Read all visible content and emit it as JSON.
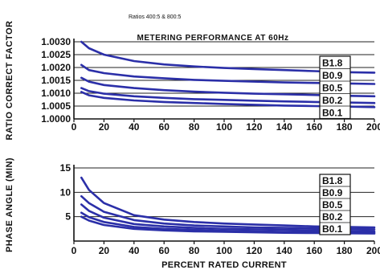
{
  "colors": {
    "curve": "#2b2fa8",
    "axis": "#111111",
    "grid": "#222222"
  },
  "header_note": "Ratios 400:5 & 800:5",
  "chart_data": [
    {
      "type": "line",
      "title": "METERING PERFORMANCE AT 60Hz",
      "xlabel": "",
      "ylabel": "RATIO CORRECT FACTOR",
      "xlim": [
        0,
        200
      ],
      "ylim": [
        1.0,
        1.003
      ],
      "x_ticks": [
        "0",
        "20",
        "40",
        "60",
        "80",
        "100",
        "120",
        "140",
        "160",
        "180",
        "200"
      ],
      "y_ticks": [
        "1.0000",
        "1.0005",
        "1.0010",
        "1.0015",
        "1.0020",
        "1.0025",
        "1.0030"
      ],
      "grid": "horizontal",
      "legend_position": "right",
      "x": [
        5,
        10,
        20,
        40,
        60,
        80,
        100,
        120,
        140,
        160,
        180,
        200
      ],
      "series": [
        {
          "name": "B1.8",
          "values": [
            1.003,
            1.00275,
            1.0025,
            1.00225,
            1.00212,
            1.00204,
            1.00198,
            1.00194,
            1.0019,
            1.00186,
            1.00182,
            1.0018
          ]
        },
        {
          "name": "B0.9",
          "values": [
            1.0021,
            1.0019,
            1.00178,
            1.00165,
            1.00158,
            1.00152,
            1.00148,
            1.00145,
            1.00142,
            1.0014,
            1.00138,
            1.00136
          ]
        },
        {
          "name": "B0.5",
          "values": [
            1.0016,
            1.00145,
            1.00132,
            1.0012,
            1.00112,
            1.00106,
            1.00102,
            1.00098,
            1.00096,
            1.00093,
            1.0009,
            1.00088
          ]
        },
        {
          "name": "B0.2",
          "values": [
            1.0012,
            1.00108,
            1.00098,
            1.00088,
            1.00082,
            1.00077,
            1.00074,
            1.00071,
            1.00068,
            1.00066,
            1.00064,
            1.00062
          ]
        },
        {
          "name": "B0.1",
          "values": [
            1.00105,
            1.00092,
            1.00082,
            1.00072,
            1.00066,
            1.00062,
            1.00058,
            1.00055,
            1.00052,
            1.0005,
            1.00048,
            1.00046
          ]
        }
      ]
    },
    {
      "type": "line",
      "title": "",
      "xlabel": "PERCENT RATED CURRENT",
      "ylabel": "PHASE ANGLE (MIN)",
      "xlim": [
        0,
        200
      ],
      "ylim": [
        0,
        15
      ],
      "x_ticks": [
        "0",
        "20",
        "40",
        "60",
        "80",
        "100",
        "120",
        "140",
        "160",
        "180",
        "200"
      ],
      "y_ticks": [
        "5",
        "10",
        "15"
      ],
      "grid": "horizontal",
      "legend_position": "right",
      "x": [
        5,
        10,
        20,
        40,
        60,
        80,
        100,
        120,
        140,
        160,
        180,
        200
      ],
      "series": [
        {
          "name": "B1.8",
          "values": [
            13,
            10.5,
            7.8,
            5.3,
            4.4,
            3.9,
            3.6,
            3.4,
            3.2,
            3.0,
            2.9,
            2.8
          ]
        },
        {
          "name": "B0.9",
          "values": [
            9.2,
            7.8,
            6.0,
            4.3,
            3.6,
            3.2,
            3.0,
            2.8,
            2.7,
            2.6,
            2.5,
            2.4
          ]
        },
        {
          "name": "B0.5",
          "values": [
            7.5,
            6.2,
            4.8,
            3.5,
            3.0,
            2.7,
            2.5,
            2.4,
            2.3,
            2.2,
            2.1,
            2.0
          ]
        },
        {
          "name": "B0.2",
          "values": [
            5.8,
            4.9,
            3.9,
            2.9,
            2.5,
            2.3,
            2.1,
            2.0,
            1.9,
            1.85,
            1.8,
            1.75
          ]
        },
        {
          "name": "B0.1",
          "values": [
            5.0,
            4.2,
            3.3,
            2.5,
            2.2,
            2.0,
            1.9,
            1.8,
            1.7,
            1.65,
            1.6,
            1.55
          ]
        }
      ]
    }
  ]
}
